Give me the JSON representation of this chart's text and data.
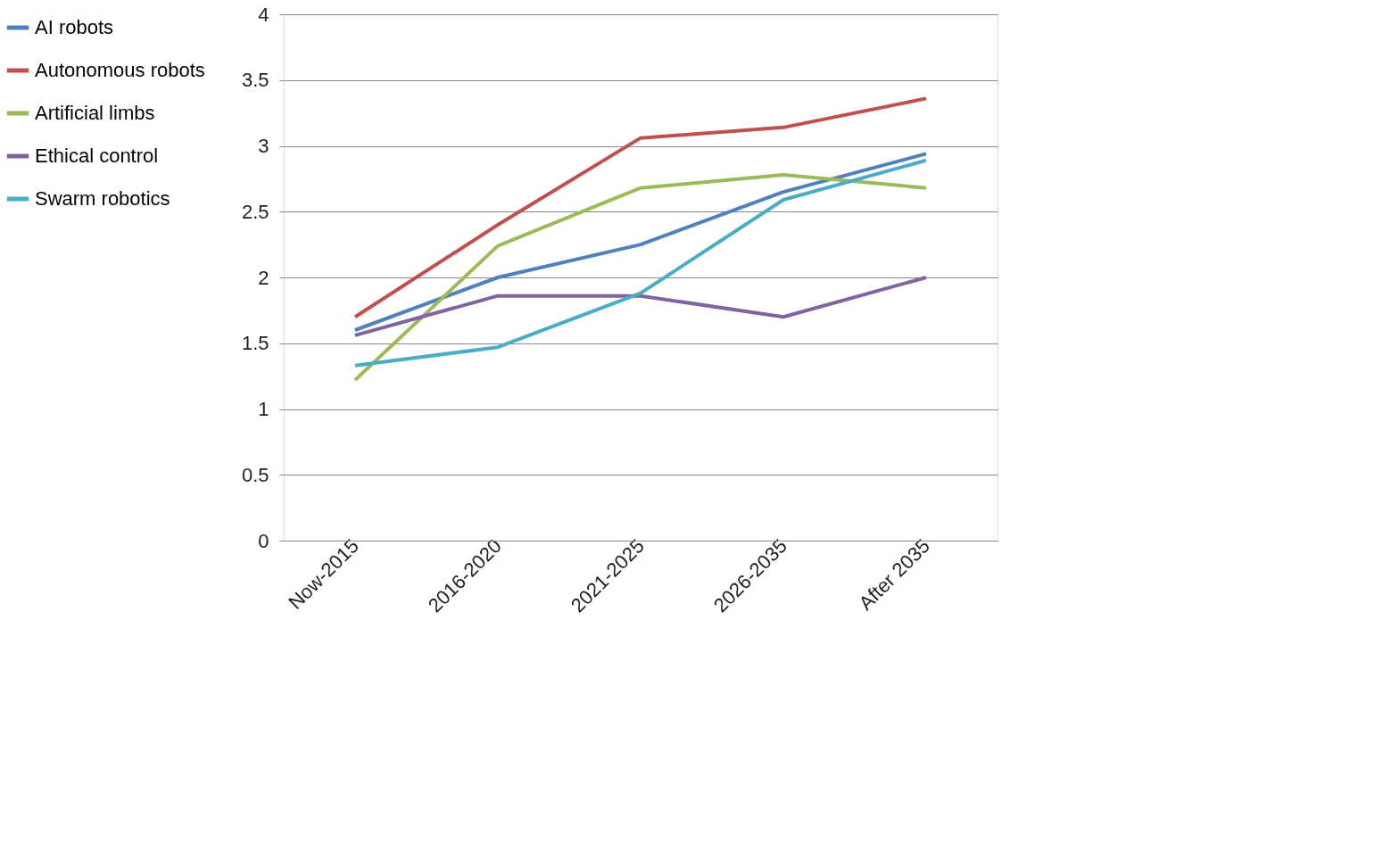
{
  "chart_data": {
    "type": "line",
    "categories": [
      "Now-2015",
      "2016-2020",
      "2021-2025",
      "2026-2035",
      "After 2035"
    ],
    "series": [
      {
        "name": "AI robots",
        "color": "#4f81bd",
        "values": [
          1.6,
          2.0,
          2.25,
          2.65,
          2.94
        ]
      },
      {
        "name": "Autonomous robots",
        "color": "#c0504d",
        "values": [
          1.7,
          2.4,
          3.06,
          3.14,
          3.36
        ]
      },
      {
        "name": "Artificial limbs",
        "color": "#9bbb59",
        "values": [
          1.22,
          2.24,
          2.68,
          2.78,
          2.68
        ]
      },
      {
        "name": "Ethical control",
        "color": "#8064a2",
        "values": [
          1.56,
          1.86,
          1.86,
          1.7,
          2.0
        ]
      },
      {
        "name": "Swarm robotics",
        "color": "#4bacc6",
        "values": [
          1.33,
          1.47,
          1.88,
          2.59,
          2.89
        ]
      }
    ],
    "ylim": [
      0,
      4
    ],
    "yticks": [
      0,
      0.5,
      1,
      1.5,
      2,
      2.5,
      3,
      3.5,
      4
    ],
    "grid": "y",
    "legend": "left",
    "marker": "none",
    "line_style": "solid"
  }
}
